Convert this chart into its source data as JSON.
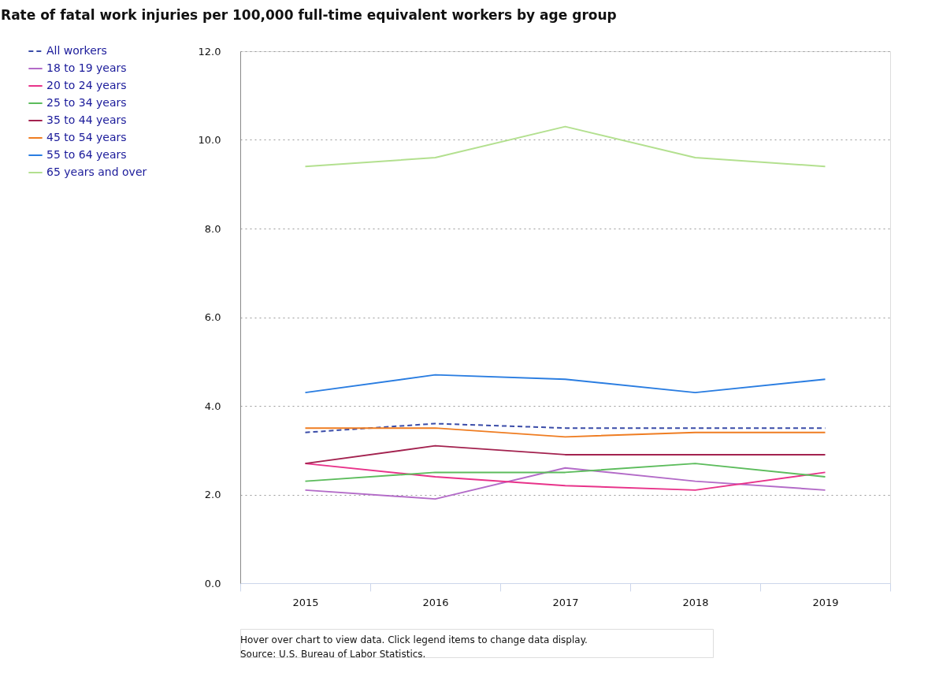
{
  "chart_data": {
    "type": "line",
    "title": "Rate of fatal work injuries per 100,000 full-time equivalent workers by age group",
    "categories": [
      "2015",
      "2016",
      "2017",
      "2018",
      "2019"
    ],
    "series": [
      {
        "name": "All workers",
        "color": "#3a4ca8",
        "line_style": "dashed",
        "values": [
          3.4,
          3.6,
          3.5,
          3.5,
          3.5
        ]
      },
      {
        "name": "18 to 19 years",
        "color": "#b36bc8",
        "values": [
          2.1,
          1.9,
          2.6,
          2.3,
          2.1
        ]
      },
      {
        "name": "20 to 24 years",
        "color": "#e8338a",
        "values": [
          2.7,
          2.4,
          2.2,
          2.1,
          2.5
        ]
      },
      {
        "name": "25 to 34 years",
        "color": "#5cbc5c",
        "values": [
          2.3,
          2.5,
          2.5,
          2.7,
          2.4
        ]
      },
      {
        "name": "35 to 44 years",
        "color": "#a3224f",
        "values": [
          2.7,
          3.1,
          2.9,
          2.9,
          2.9
        ]
      },
      {
        "name": "45 to 54 years",
        "color": "#ef7d22",
        "values": [
          3.5,
          3.5,
          3.3,
          3.4,
          3.4
        ]
      },
      {
        "name": "55 to 64 years",
        "color": "#2a7de1",
        "values": [
          4.3,
          4.7,
          4.6,
          4.3,
          4.6
        ]
      },
      {
        "name": "65 years and over",
        "color": "#b3e08f",
        "values": [
          9.4,
          9.6,
          10.3,
          9.6,
          9.4
        ]
      }
    ],
    "ylim": [
      0,
      12
    ],
    "yticks": [
      {
        "value": 0,
        "label": "0.0"
      },
      {
        "value": 2,
        "label": "2.0"
      },
      {
        "value": 4,
        "label": "4.0"
      },
      {
        "value": 6,
        "label": "6.0"
      },
      {
        "value": 8,
        "label": "8.0"
      },
      {
        "value": 10,
        "label": "10.0"
      },
      {
        "value": 12,
        "label": "12.0"
      }
    ],
    "grid": "y",
    "legend": "top left",
    "line_style": "solid",
    "annotations": [
      "Hover over chart to view data. Click legend items to change data display.",
      "Source: U.S. Bureau of Labor Statistics."
    ]
  }
}
